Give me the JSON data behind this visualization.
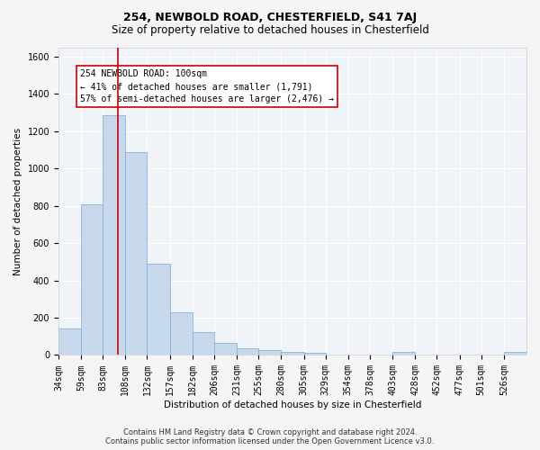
{
  "title": "254, NEWBOLD ROAD, CHESTERFIELD, S41 7AJ",
  "subtitle": "Size of property relative to detached houses in Chesterfield",
  "xlabel": "Distribution of detached houses by size in Chesterfield",
  "ylabel": "Number of detached properties",
  "annotation_line1": "254 NEWBOLD ROAD: 100sqm",
  "annotation_line2": "← 41% of detached houses are smaller (1,791)",
  "annotation_line3": "57% of semi-detached houses are larger (2,476) →",
  "footer_line1": "Contains HM Land Registry data © Crown copyright and database right 2024.",
  "footer_line2": "Contains public sector information licensed under the Open Government Licence v3.0.",
  "bar_color": "#c8d8ec",
  "bar_edge_color": "#7aaad0",
  "red_line_x": 100,
  "categories": [
    "34sqm",
    "59sqm",
    "83sqm",
    "108sqm",
    "132sqm",
    "157sqm",
    "182sqm",
    "206sqm",
    "231sqm",
    "255sqm",
    "280sqm",
    "305sqm",
    "329sqm",
    "354sqm",
    "378sqm",
    "403sqm",
    "428sqm",
    "452sqm",
    "477sqm",
    "501sqm",
    "526sqm"
  ],
  "values": [
    140,
    810,
    1285,
    1090,
    490,
    230,
    125,
    65,
    38,
    27,
    15,
    12,
    0,
    0,
    0,
    17,
    0,
    0,
    0,
    0,
    17
  ],
  "bin_edges": [
    34,
    59,
    83,
    108,
    132,
    157,
    182,
    206,
    231,
    255,
    280,
    305,
    329,
    354,
    378,
    403,
    428,
    452,
    477,
    501,
    526,
    551
  ],
  "ylim": [
    0,
    1650
  ],
  "yticks": [
    0,
    200,
    400,
    600,
    800,
    1000,
    1200,
    1400,
    1600
  ],
  "background_color": "#f5f5f5",
  "plot_background": "#f0f4f8",
  "grid_color": "#ffffff",
  "annotation_box_color": "#ffffff",
  "annotation_box_edge": "#cc0000",
  "red_line_color": "#cc0000",
  "title_fontsize": 9,
  "subtitle_fontsize": 8.5,
  "axis_label_fontsize": 7.5,
  "tick_fontsize": 7,
  "annotation_fontsize": 7,
  "footer_fontsize": 6
}
